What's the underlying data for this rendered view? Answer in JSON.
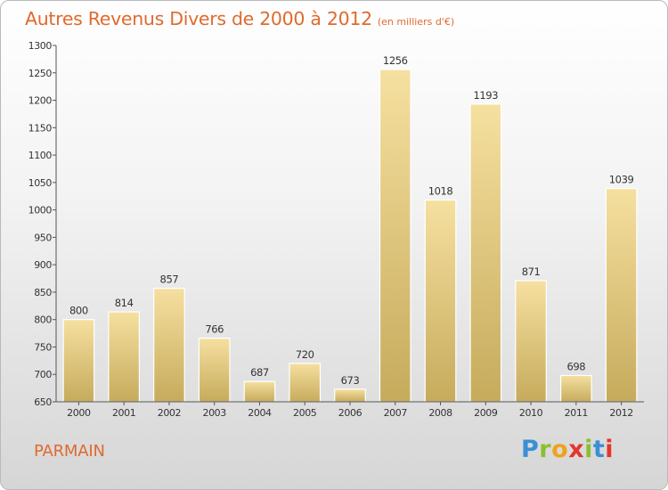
{
  "header": {
    "title": "Autres Revenus Divers de 2000 à 2012",
    "unit": "(en milliers d'€)"
  },
  "footer": {
    "commune": "PARMAIN",
    "logo": {
      "letters": [
        "P",
        "r",
        "o",
        "x",
        "i",
        "t",
        "i"
      ],
      "colors": [
        "#3a8fd6",
        "#8bbf2f",
        "#f0a21a",
        "#e2362d",
        "#8bbf2f",
        "#3a8fd6",
        "#e2362d"
      ]
    }
  },
  "chart_data": {
    "type": "bar",
    "categories": [
      "2000",
      "2001",
      "2002",
      "2003",
      "2004",
      "2005",
      "2006",
      "2007",
      "2008",
      "2009",
      "2010",
      "2011",
      "2012"
    ],
    "values": [
      800,
      814,
      857,
      766,
      687,
      720,
      673,
      1256,
      1018,
      1193,
      871,
      698,
      1039
    ],
    "value_labels": [
      "800",
      "814",
      "857",
      "766",
      "687",
      "720",
      "673",
      "1256",
      "1018",
      "1193",
      "871",
      "698",
      "1039"
    ],
    "title": "Autres Revenus Divers de 2000 à 2012",
    "xlabel": "",
    "ylabel": "",
    "ylim": [
      650,
      1300
    ],
    "yticks": [
      650,
      700,
      750,
      800,
      850,
      900,
      950,
      1000,
      1050,
      1100,
      1150,
      1200,
      1250,
      1300
    ],
    "grid": false,
    "legend": "none",
    "colors": {
      "bar_light": "#f6e0a0",
      "bar_dark": "#c6ab5c",
      "accent": "#df6a2e",
      "axis": "#555555"
    }
  }
}
